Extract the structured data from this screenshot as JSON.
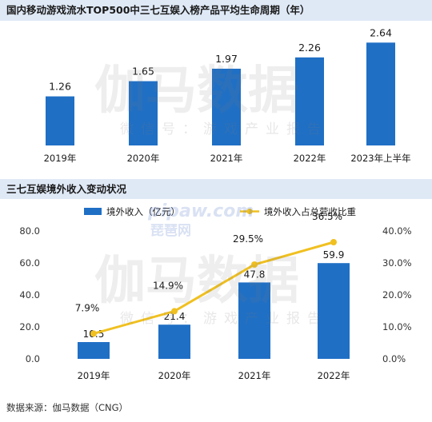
{
  "chart_data": [
    {
      "type": "bar",
      "title": "国内移动游戏流水TOP500中三七互娱入榜产品平均生命周期（年）",
      "categories": [
        "2019年",
        "2020年",
        "2021年",
        "2022年",
        "2023年上半年"
      ],
      "values": [
        1.26,
        1.65,
        1.97,
        2.26,
        2.64
      ],
      "value_labels": [
        "1.26",
        "1.65",
        "1.97",
        "2.26",
        "2.64"
      ],
      "ylim": [
        0,
        3.2
      ],
      "grid": false,
      "color": "#1f6fc5"
    },
    {
      "type": "bar",
      "title": "三七互娱境外收入变动状况",
      "categories": [
        "2019年",
        "2020年",
        "2021年",
        "2022年"
      ],
      "series": [
        {
          "name": "境外收入（亿元）",
          "type": "bar",
          "axis": "left",
          "values": [
            10.5,
            21.4,
            47.8,
            59.9
          ],
          "value_labels": [
            "10.5",
            "21.4",
            "47.8",
            "59.9"
          ],
          "color": "#1f6fc5"
        },
        {
          "name": "境外收入占总营收比重",
          "type": "line",
          "axis": "right",
          "values": [
            7.9,
            14.9,
            29.5,
            36.5
          ],
          "value_labels": [
            "7.9%",
            "14.9%",
            "29.5%",
            "36.5%"
          ],
          "color": "#f0c020"
        }
      ],
      "y_left": {
        "ticks": [
          "0.0",
          "20.0",
          "40.0",
          "60.0",
          "80.0"
        ],
        "lim": [
          0,
          80
        ]
      },
      "y_right": {
        "ticks": [
          "0.0%",
          "10.0%",
          "20.0%",
          "30.0%",
          "40.0%"
        ],
        "lim": [
          0,
          40
        ]
      },
      "legend": "top",
      "grid": false
    }
  ],
  "watermark": {
    "main": "伽马数据",
    "sub": "微信号：游戏产业报告",
    "site": "pipaw.com",
    "site_cn": "琵琶网"
  },
  "source": "数据来源：伽马数据（CNG）"
}
